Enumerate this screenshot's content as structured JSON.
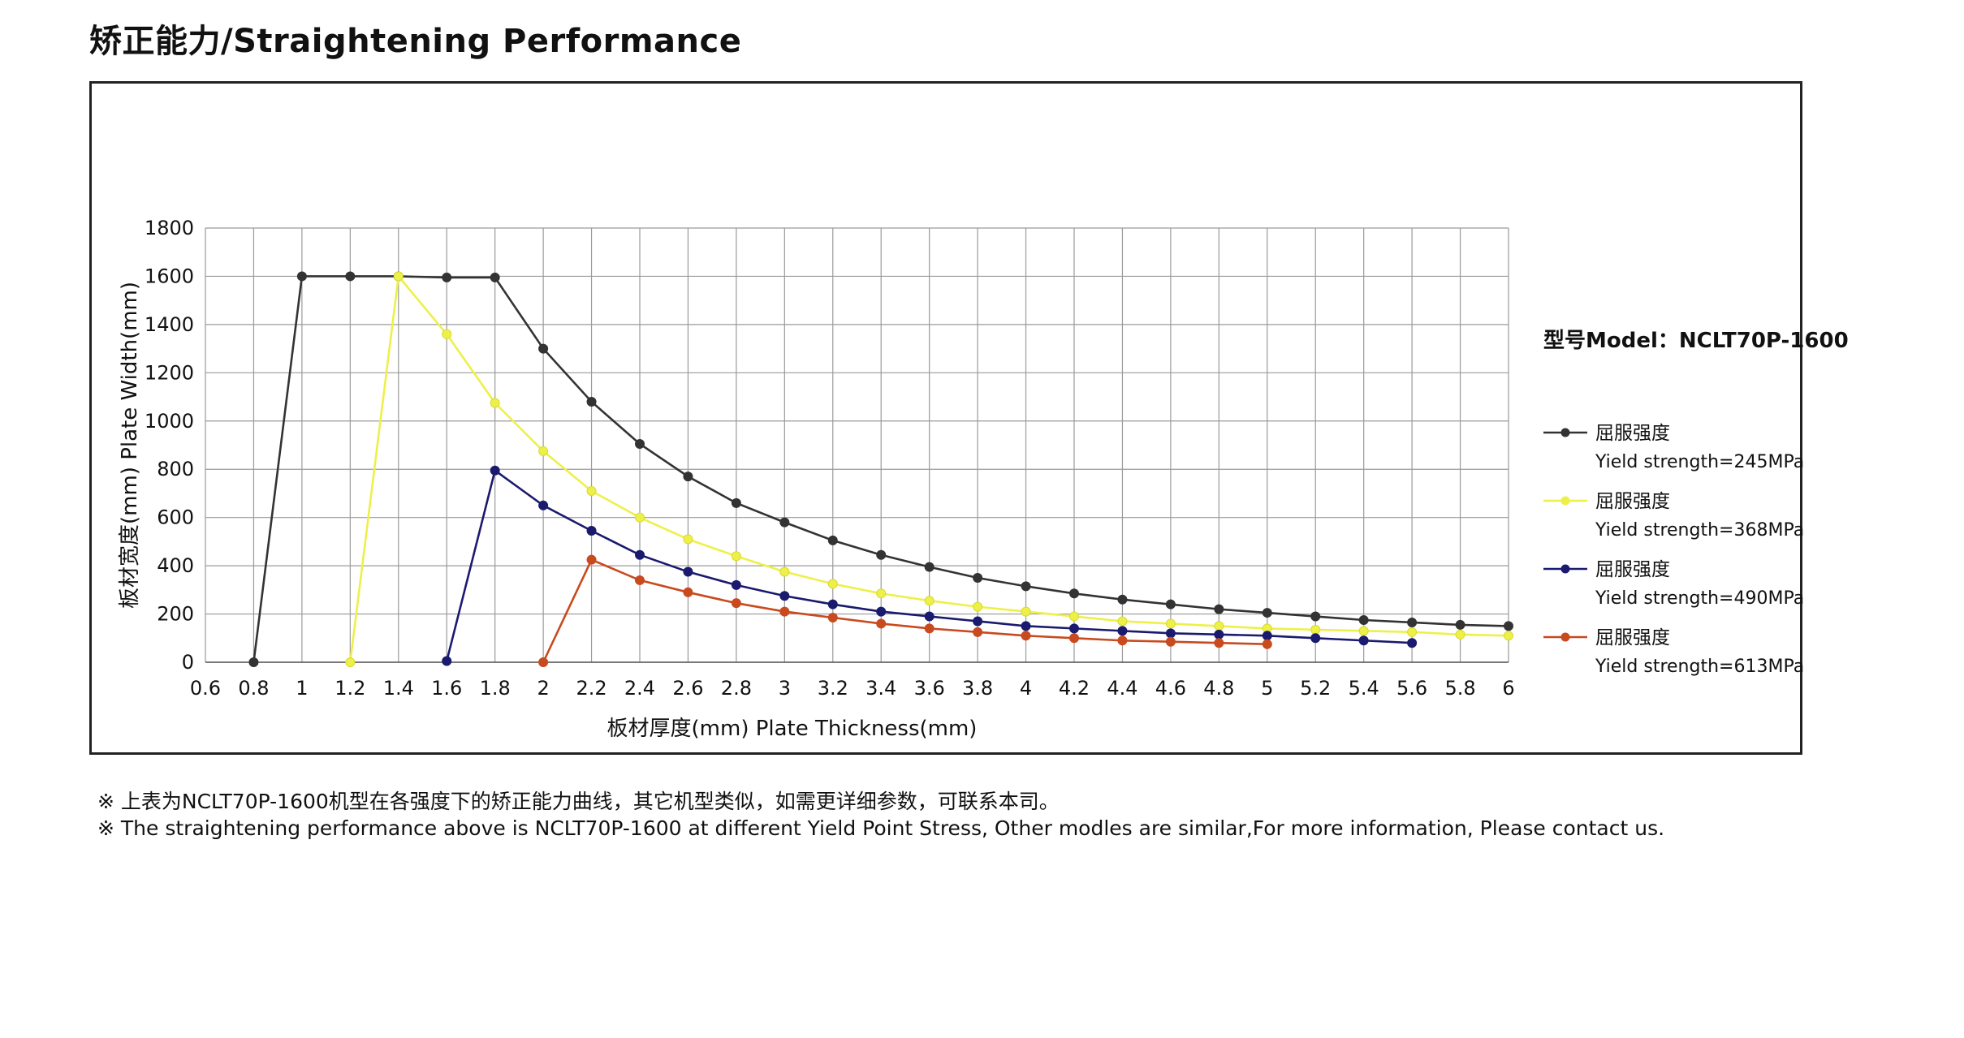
{
  "page": {
    "title": "矫正能力/Straightening Performance",
    "note_cn": "※ 上表为NCLT70P-1600机型在各强度下的矫正能力曲线，其它机型类似，如需更详细参数，可联系本司。",
    "note_en": "※  The straightening performance above is NCLT70P-1600 at different Yield Point Stress, Other modles are similar,For more information, Please contact us."
  },
  "chart_data": {
    "type": "line",
    "xlabel": "板材厚度(mm) Plate Thickness(mm)",
    "ylabel": "板材宽度(mm)  Plate Width(mm)",
    "xlim": [
      0.6,
      6
    ],
    "ylim": [
      0,
      1800
    ],
    "x_ticks": [
      "0.6",
      "0.8",
      "1",
      "1.2",
      "1.4",
      "1.6",
      "1.8",
      "2",
      "2.2",
      "2.4",
      "2.6",
      "2.8",
      "3",
      "3.2",
      "3.4",
      "3.6",
      "3.8",
      "4",
      "4.2",
      "4.4",
      "4.6",
      "4.8",
      "5",
      "5.2",
      "5.4",
      "5.6",
      "5.8",
      "6"
    ],
    "y_ticks": [
      "0",
      "200",
      "400",
      "600",
      "800",
      "1000",
      "1200",
      "1400",
      "1600",
      "1800"
    ],
    "grid": true,
    "legend_placement": "right",
    "model_label": "型号Model：NCLT70P-1600",
    "series": [
      {
        "name": "屈服强度",
        "name_en": "Yield strength=245MPa",
        "color": "#333333",
        "x": [
          0.8,
          1,
          1.2,
          1.4,
          1.6,
          1.8,
          2,
          2.2,
          2.4,
          2.6,
          2.8,
          3,
          3.2,
          3.4,
          3.6,
          3.8,
          4,
          4.2,
          4.4,
          4.6,
          4.8,
          5,
          5.2,
          5.4,
          5.6,
          5.8,
          6
        ],
        "y": [
          0,
          1600,
          1600,
          1600,
          1595,
          1595,
          1300,
          1080,
          905,
          770,
          660,
          580,
          505,
          445,
          395,
          350,
          315,
          285,
          260,
          240,
          220,
          205,
          190,
          175,
          165,
          155,
          150
        ]
      },
      {
        "name": "屈服强度",
        "name_en": "Yield strength=368MPa",
        "color": "#eef04a",
        "x": [
          1.2,
          1.4,
          1.6,
          1.8,
          2,
          2.2,
          2.4,
          2.6,
          2.8,
          3,
          3.2,
          3.4,
          3.6,
          3.8,
          4,
          4.2,
          4.4,
          4.6,
          4.8,
          5,
          5.2,
          5.4,
          5.6,
          5.8,
          6
        ],
        "y": [
          0,
          1600,
          1360,
          1075,
          875,
          710,
          600,
          510,
          440,
          375,
          325,
          285,
          255,
          230,
          210,
          190,
          170,
          160,
          150,
          140,
          135,
          130,
          125,
          115,
          110
        ]
      },
      {
        "name": "屈服强度",
        "name_en": "Yield strength=490MPa",
        "color": "#1a1a6e",
        "x": [
          1.6,
          1.8,
          2,
          2.2,
          2.4,
          2.6,
          2.8,
          3,
          3.2,
          3.4,
          3.6,
          3.8,
          4,
          4.2,
          4.4,
          4.6,
          4.8,
          5,
          5.2,
          5.4,
          5.6
        ],
        "y": [
          5,
          795,
          650,
          545,
          445,
          375,
          320,
          275,
          240,
          210,
          190,
          170,
          150,
          140,
          130,
          120,
          115,
          110,
          100,
          90,
          80
        ]
      },
      {
        "name": "屈服强度",
        "name_en": "Yield strength=613MPa",
        "color": "#c84a1e",
        "x": [
          2,
          2.2,
          2.4,
          2.6,
          2.8,
          3,
          3.2,
          3.4,
          3.6,
          3.8,
          4,
          4.2,
          4.4,
          4.6,
          4.8,
          5
        ],
        "y": [
          0,
          425,
          340,
          290,
          245,
          210,
          185,
          160,
          140,
          125,
          110,
          100,
          90,
          85,
          80,
          75
        ]
      }
    ]
  }
}
